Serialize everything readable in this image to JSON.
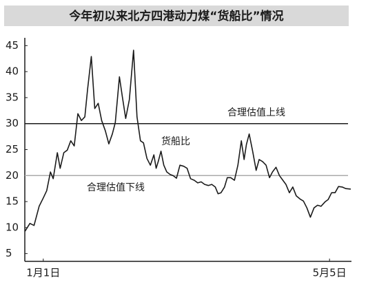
{
  "chart_data": {
    "type": "line",
    "title": "今年初以来北方四港动力煤“货船比”情况",
    "x": [
      -6.9,
      -4.8,
      -3.0,
      -0.8,
      1,
      2.5,
      4.1,
      5.3,
      7.1,
      8.3,
      9.9,
      11.4,
      12.9,
      14.4,
      16.0,
      17.5,
      19.0,
      20.2,
      21.8,
      23.3,
      24.8,
      26.3,
      27.9,
      29.4,
      30.9,
      32.2,
      34.0,
      35.2,
      36.7,
      38.3,
      40.1,
      41.6,
      43.1,
      44.4,
      45.9,
      47.4,
      48.9,
      49.9,
      50.8,
      52.0,
      53.2,
      54.5,
      56.0,
      57.2,
      58.7,
      60.2,
      61.8,
      63.3,
      64.8,
      66.4,
      67.9,
      69.4,
      70.9,
      72.5,
      74.0,
      75.5,
      76.7,
      78.0,
      79.5,
      80.7,
      82.2,
      83.8,
      85.3,
      86.8,
      88.0,
      89.0,
      90.2,
      91.7,
      93.2,
      94.5,
      96.0,
      97.5,
      99.0,
      100.3,
      101.8,
      103.3,
      104.8,
      106.1,
      107.6,
      109.1,
      110.6,
      112.2,
      113.7,
      115.2,
      116.7,
      118.3,
      119.8,
      121.3,
      123.2,
      124.4,
      125.9,
      127.4,
      128.9,
      130.5,
      132.0,
      134.2
    ],
    "series": [
      {
        "name": "货船比",
        "color": "#1a1a1a",
        "values": [
          9.3,
          10.8,
          10.4,
          14.1,
          15.7,
          17.1,
          20.7,
          19.4,
          24.4,
          21.4,
          24.4,
          24.9,
          26.7,
          25.7,
          31.9,
          30.6,
          31.3,
          36.6,
          42.9,
          32.9,
          33.9,
          30.6,
          28.6,
          26.1,
          28.0,
          30.2,
          39.0,
          35.3,
          31.0,
          34.6,
          44.1,
          31.3,
          26.7,
          26.3,
          23.3,
          22.0,
          24.0,
          21.4,
          22.7,
          24.7,
          22.0,
          20.7,
          20.2,
          20.0,
          19.5,
          22.0,
          21.8,
          21.4,
          19.4,
          19.1,
          18.6,
          18.8,
          18.3,
          18.1,
          18.3,
          17.8,
          16.5,
          16.7,
          17.8,
          19.6,
          19.6,
          19.1,
          22.0,
          26.7,
          23.1,
          26.0,
          28.0,
          24.7,
          21.0,
          23.1,
          22.7,
          22.0,
          19.6,
          20.7,
          21.6,
          20.0,
          19.1,
          18.3,
          16.7,
          17.8,
          16.1,
          15.5,
          15.1,
          13.8,
          12.0,
          13.8,
          14.3,
          14.1,
          15.0,
          15.4,
          16.7,
          16.7,
          17.9,
          17.8,
          17.5,
          17.4
        ]
      }
    ],
    "reference_lines": [
      {
        "value": 30,
        "label": "合理估值上线",
        "color": "#1a1a1a"
      },
      {
        "value": 20,
        "label": "合理估值下线",
        "color": "#aaaaaa"
      }
    ],
    "xlim": [
      -7,
      134.5
    ],
    "xticks": [
      {
        "value": 1,
        "label": "1月1日"
      },
      {
        "value": 125,
        "label": "5月5日"
      }
    ],
    "ylim": [
      3.5,
      46.5
    ],
    "yticks": [
      5,
      10,
      15,
      20,
      25,
      30,
      35,
      40,
      45
    ]
  }
}
